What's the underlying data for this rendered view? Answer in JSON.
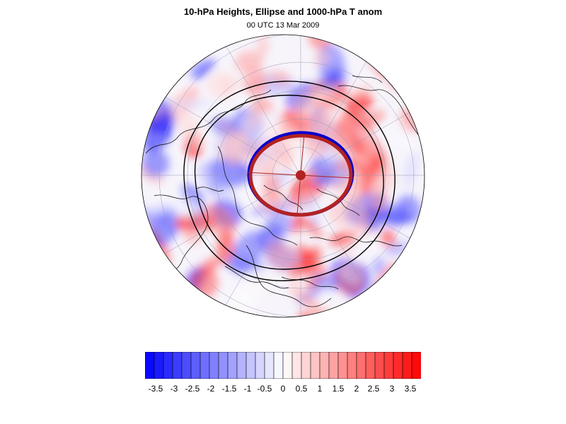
{
  "title": "10-hPa Heights, Ellipse and 1000-hPa T anom",
  "subtitle": "00 UTC 13 Mar 2009",
  "colors": {
    "negative": "#0000ff",
    "positive": "#ff0000",
    "ellipse": "#b22222",
    "ellipse_edge": "#0000cc",
    "contour": "#000000"
  },
  "colorbar": {
    "ticks": [
      "-3.5",
      "-3",
      "-2.5",
      "-2",
      "-1.5",
      "-1",
      "-0.5",
      "0",
      "0.5",
      "1",
      "1.5",
      "2",
      "2.5",
      "3",
      "3.5"
    ],
    "range": [
      -4,
      4
    ],
    "bins": 30
  }
}
